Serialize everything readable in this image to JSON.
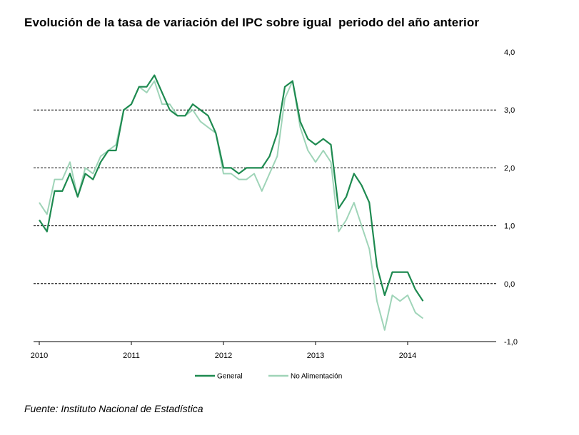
{
  "chart_data": {
    "type": "line",
    "title": "Evolución de la tasa de variación del IPC sobre igual  periodo del año anterior",
    "xlabel": "",
    "ylabel": "",
    "x_tick_labels": [
      "2010",
      "2011",
      "2012",
      "2013",
      "2014"
    ],
    "y_tick_labels": [
      "4,0",
      "3,0",
      "2,0",
      "1,0",
      "0,0",
      "-1,0"
    ],
    "ylim": [
      -1.0,
      4.0
    ],
    "start": "2010-01",
    "grid": "horizontal dashed",
    "legend": "bottom",
    "series": [
      {
        "name": "General",
        "color": "#1e8a50",
        "values": [
          1.1,
          0.9,
          1.6,
          1.6,
          1.9,
          1.5,
          1.9,
          1.8,
          2.1,
          2.3,
          2.3,
          3.0,
          3.1,
          3.4,
          3.4,
          3.6,
          3.3,
          3.0,
          2.9,
          2.9,
          3.1,
          3.0,
          2.9,
          2.6,
          2.0,
          2.0,
          1.9,
          2.0,
          2.0,
          2.0,
          2.2,
          2.6,
          3.4,
          3.5,
          2.8,
          2.5,
          2.4,
          2.5,
          2.4,
          1.3,
          1.5,
          1.9,
          1.7,
          1.4,
          0.3,
          -0.2,
          0.2,
          0.2,
          0.2,
          -0.1,
          -0.3
        ]
      },
      {
        "name": "No Alimentación",
        "color": "#9fd4b8",
        "values": [
          1.4,
          1.2,
          1.8,
          1.8,
          2.1,
          1.5,
          2.0,
          1.9,
          2.2,
          2.3,
          2.4,
          3.0,
          3.1,
          3.4,
          3.3,
          3.5,
          3.1,
          3.1,
          2.9,
          2.9,
          3.0,
          2.8,
          2.7,
          2.6,
          1.9,
          1.9,
          1.8,
          1.8,
          1.9,
          1.6,
          1.9,
          2.2,
          3.2,
          3.5,
          2.7,
          2.3,
          2.1,
          2.3,
          2.1,
          0.9,
          1.1,
          1.4,
          1.0,
          0.6,
          -0.3,
          -0.8,
          -0.2,
          -0.3,
          -0.2,
          -0.5,
          -0.6
        ]
      }
    ]
  },
  "source": "Fuente: Instituto Nacional de Estadística"
}
